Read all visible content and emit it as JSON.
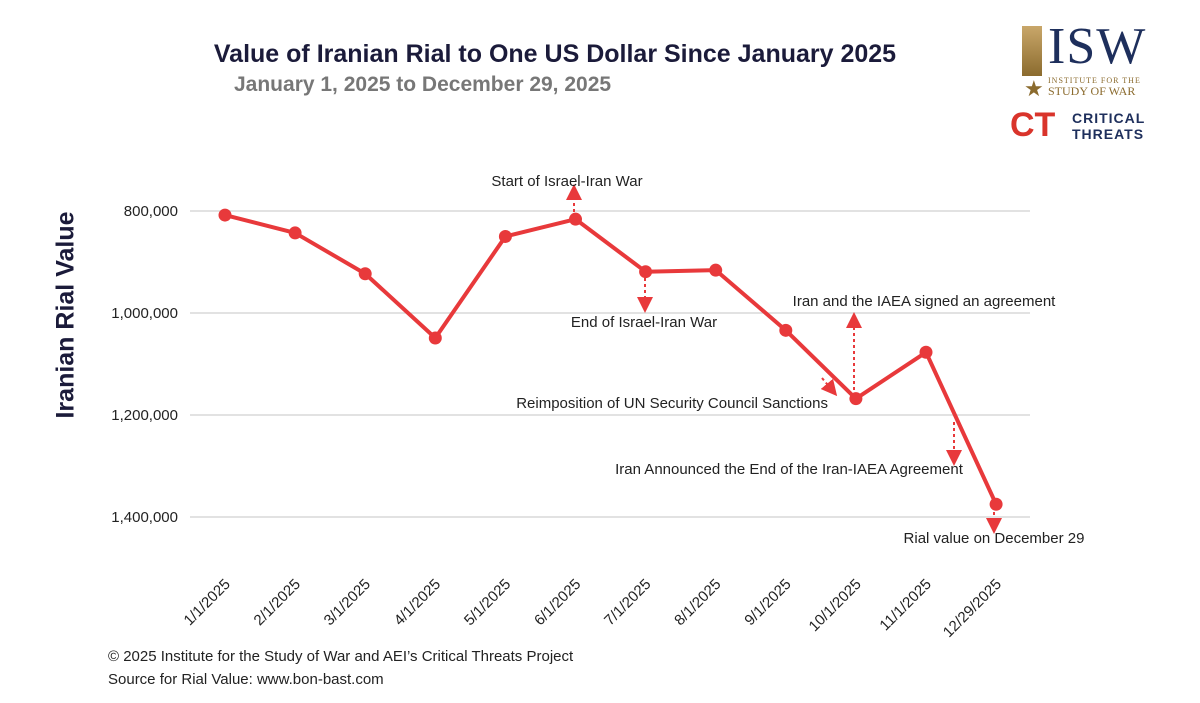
{
  "chart_data": {
    "type": "line",
    "title": "Value of Iranian Rial to One US Dollar Since January 2025",
    "subtitle": "January 1, 2025 to December 29, 2025",
    "ylabel": "Iranian Rial Value",
    "xlabel": "",
    "categories": [
      "1/1/2025",
      "2/1/2025",
      "3/1/2025",
      "4/1/2025",
      "5/1/2025",
      "6/1/2025",
      "7/1/2025",
      "8/1/2025",
      "9/1/2025",
      "10/1/2025",
      "11/1/2025",
      "12/29/2025"
    ],
    "series": [
      {
        "values": [
          808000,
          843000,
          923000,
          1049000,
          850000,
          816000,
          919000,
          916000,
          1034000,
          1168000,
          1077000,
          1375000
        ]
      }
    ],
    "y_axis": {
      "ticks": [
        800000,
        1000000,
        1200000,
        1400000
      ],
      "tick_labels": [
        "800,000",
        "1,000,000",
        "1,200,000",
        "1,400,000"
      ],
      "inverted": true,
      "range": [
        710000,
        1480000
      ]
    },
    "grid": true,
    "legend": "none",
    "line_color": "#e8393b",
    "annotation_color": "#e8393b",
    "annotations": [
      {
        "text": "Start of Israel-Iran War",
        "category": "6/1/2025",
        "direction": "up"
      },
      {
        "text": "End of Israel-Iran War",
        "category": "7/1/2025",
        "direction": "down"
      },
      {
        "text": "Iran and the IAEA signed an agreement",
        "category": "10/1/2025",
        "direction": "up"
      },
      {
        "text": "Reimposition of UN Security Council Sanctions",
        "category": "10/1/2025",
        "direction": "down-left"
      },
      {
        "text": "Iran Announced the End of the Iran-IAEA Agreement",
        "category": "11/1/2025",
        "direction": "down"
      },
      {
        "text": "Rial value on December 29",
        "category": "12/29/2025",
        "direction": "down"
      }
    ]
  },
  "logo": {
    "isw": "ISW",
    "isw_sub1": "INSTITUTE FOR THE",
    "isw_sub2": "STUDY OF WAR",
    "ct_mark": "CT",
    "ct_line1": "CRITICAL",
    "ct_line2": "THREATS"
  },
  "footer": {
    "copyright": "© 2025 Institute for the Study of War and AEI’s Critical Threats Project",
    "source": "Source for Rial Value: www.bon-bast.com"
  }
}
